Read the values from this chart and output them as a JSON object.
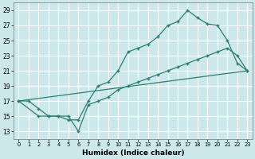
{
  "title": "",
  "xlabel": "Humidex (Indice chaleur)",
  "bg_color": "#cce8eb",
  "grid_color": "#ffffff",
  "line_color": "#2e7d72",
  "xlim": [
    -0.5,
    23.5
  ],
  "ylim": [
    12,
    30
  ],
  "xticks": [
    0,
    1,
    2,
    3,
    4,
    5,
    6,
    7,
    8,
    9,
    10,
    11,
    12,
    13,
    14,
    15,
    16,
    17,
    18,
    19,
    20,
    21,
    22,
    23
  ],
  "yticks": [
    13,
    15,
    17,
    19,
    21,
    23,
    25,
    27,
    29
  ],
  "line1_x": [
    0,
    1,
    2,
    3,
    4,
    5,
    6,
    7,
    8,
    9,
    10,
    11,
    12,
    13,
    14,
    15,
    16,
    17,
    18,
    19,
    20,
    21,
    22,
    23
  ],
  "line1_y": [
    17,
    17,
    16,
    15,
    15,
    14.5,
    14.5,
    17,
    19,
    19.5,
    21,
    23.5,
    24,
    24.5,
    25.5,
    27,
    27.5,
    29,
    28,
    27.2,
    27,
    25,
    22,
    21
  ],
  "line2_x": [
    0,
    2,
    3,
    4,
    5,
    6,
    7,
    8,
    9,
    10,
    11,
    12,
    13,
    14,
    15,
    16,
    17,
    18,
    19,
    20,
    21,
    22,
    23
  ],
  "line2_y": [
    17,
    15,
    15,
    15,
    15,
    13,
    16.5,
    17,
    17.5,
    18.5,
    19,
    19.5,
    20,
    20.5,
    21,
    21.5,
    22,
    22.5,
    23,
    23.5,
    24,
    23,
    21
  ],
  "line3_x": [
    0,
    23
  ],
  "line3_y": [
    17,
    21
  ]
}
